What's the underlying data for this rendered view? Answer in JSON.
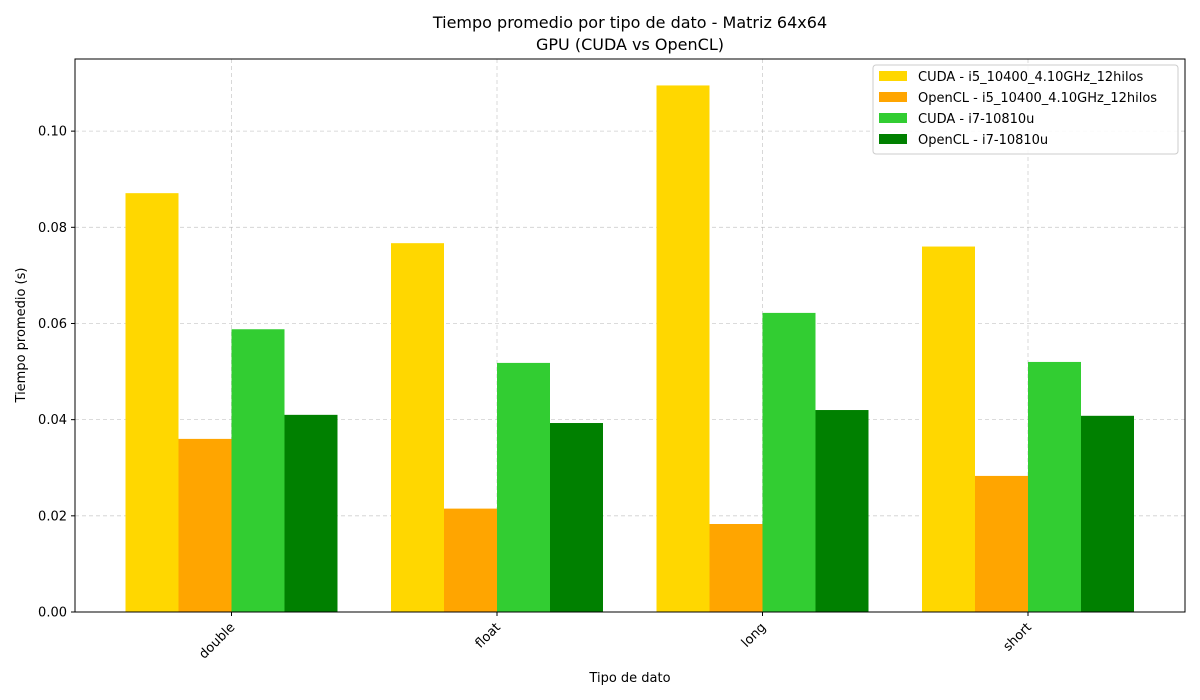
{
  "chart_data": {
    "type": "bar",
    "title": "Tiempo promedio por tipo de dato - Matriz 64x64",
    "subtitle": "GPU (CUDA vs OpenCL)",
    "xlabel": "Tipo de dato",
    "ylabel": "Tiempo promedio (s)",
    "categories": [
      "double",
      "float",
      "long",
      "short"
    ],
    "series": [
      {
        "name": "CUDA - i5_10400_4.10GHz_12hilos",
        "color": "#ffd700",
        "values": [
          0.0871,
          0.0767,
          0.1095,
          0.076
        ]
      },
      {
        "name": "OpenCL - i5_10400_4.10GHz_12hilos",
        "color": "#ffa500",
        "values": [
          0.036,
          0.0215,
          0.0183,
          0.0283
        ]
      },
      {
        "name": "CUDA - i7-10810u",
        "color": "#32cd32",
        "values": [
          0.0588,
          0.0518,
          0.0622,
          0.052
        ]
      },
      {
        "name": "OpenCL - i7-10810u",
        "color": "#008000",
        "values": [
          0.041,
          0.0393,
          0.042,
          0.0408
        ]
      }
    ],
    "ylim": [
      0,
      0.115
    ],
    "yticks": [
      "0.00",
      "0.02",
      "0.04",
      "0.06",
      "0.08",
      "0.10"
    ],
    "ytick_values": [
      0,
      0.02,
      0.04,
      0.06,
      0.08,
      0.1
    ],
    "grid": true,
    "legend_position": "top-right",
    "x_tick_rotation": "45 degrees"
  }
}
